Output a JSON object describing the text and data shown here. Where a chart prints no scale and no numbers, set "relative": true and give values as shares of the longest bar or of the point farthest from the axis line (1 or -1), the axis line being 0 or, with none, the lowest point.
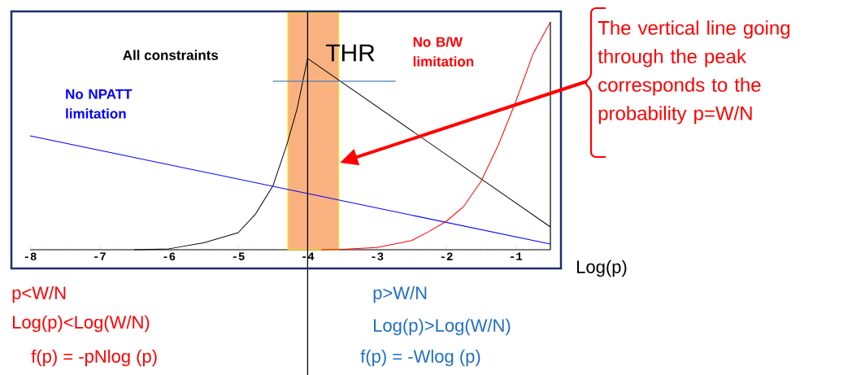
{
  "chart_data": {
    "type": "line",
    "relative": true,
    "xlabel": "Log(p)",
    "xlim": [
      -8,
      -0.5
    ],
    "xticks": [
      -8,
      -7,
      -6,
      -5,
      -4,
      -3,
      -2,
      -1
    ],
    "series": [
      {
        "name": "All constraints",
        "color": "#000000",
        "x": [
          -6.5,
          -6,
          -5.5,
          -5,
          -4.75,
          -4.5,
          -4.3,
          -4.15,
          -4,
          -0.5
        ],
        "values": [
          0,
          0.004,
          0.03,
          0.075,
          0.157,
          0.28,
          0.46,
          0.62,
          0.84,
          0.1
        ]
      },
      {
        "name": "No NPATT limitation",
        "color": "#0000ff",
        "x": [
          -8,
          -0.5
        ],
        "values": [
          0.5,
          0.025
        ]
      },
      {
        "name": "No B/W limitation",
        "color": "#ff0000",
        "x": [
          -3.8,
          -3.5,
          -3,
          -2.5,
          -2.25,
          -2,
          -1.75,
          -1.5,
          -1.25,
          -1,
          -0.75,
          -0.5
        ],
        "values": [
          0,
          0.002,
          0.01,
          0.04,
          0.08,
          0.125,
          0.19,
          0.3,
          0.46,
          0.65,
          0.86,
          1
        ]
      },
      {
        "color": "#4a7ebb",
        "x": [
          -4.5,
          -2.73
        ],
        "values": [
          0.74,
          0.74
        ]
      }
    ],
    "ref_lines": [
      {
        "axis": "x",
        "value": -4,
        "color": "#000000"
      }
    ],
    "bands": [
      {
        "axis": "x",
        "from": -4.285,
        "to": -3.55,
        "color": "#f9b27f"
      }
    ],
    "annotations": [
      "The vertical line going through the peak corresponds to the probability p=W/N",
      "p<W/N",
      "Log(p)<Log(W/N)",
      "f(p) = -pNlog (p)",
      "p>W/N",
      "Log(p)>Log(W/N)",
      "f(p) = -Wlog (p)",
      "THR"
    ]
  }
}
